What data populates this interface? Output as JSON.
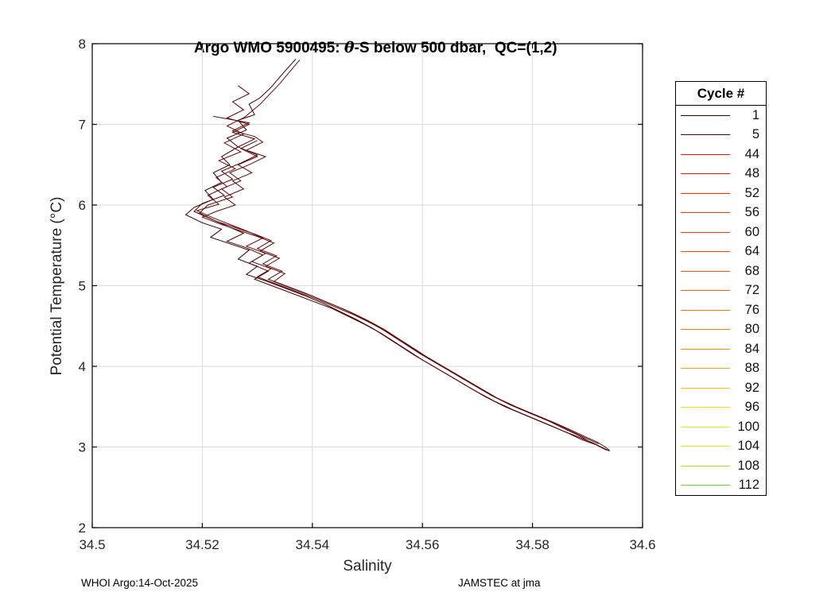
{
  "figure": {
    "title_prefix": "Argo WMO 5900495: ",
    "title_theta": "θ",
    "title_suffix": "-S below 500 dbar,  QC=(1,2)",
    "footer_left": "WHOI Argo:14-Oct-2025",
    "footer_right": "JAMSTEC at jma"
  },
  "legend": {
    "title": "Cycle #",
    "entries": [
      {
        "label": "1",
        "color": "#2e0000"
      },
      {
        "label": "5",
        "color": "#520003"
      },
      {
        "label": "44",
        "color": "#fb0f00"
      },
      {
        "label": "48",
        "color": "#f51d00"
      },
      {
        "label": "52",
        "color": "#ff2a00"
      },
      {
        "label": "56",
        "color": "#f63600"
      },
      {
        "label": "60",
        "color": "#ea4200"
      },
      {
        "label": "64",
        "color": "#f84e00"
      },
      {
        "label": "68",
        "color": "#f65a00"
      },
      {
        "label": "72",
        "color": "#f56600"
      },
      {
        "label": "76",
        "color": "#f77200"
      },
      {
        "label": "80",
        "color": "#f87e00"
      },
      {
        "label": "84",
        "color": "#f98b00"
      },
      {
        "label": "88",
        "color": "#fca500"
      },
      {
        "label": "92",
        "color": "#fdc100"
      },
      {
        "label": "96",
        "color": "#fedd00"
      },
      {
        "label": "100",
        "color": "#f8ef00"
      },
      {
        "label": "104",
        "color": "#d9ee00"
      },
      {
        "label": "108",
        "color": "#b3e400"
      },
      {
        "label": "112",
        "color": "#7ed321"
      }
    ]
  },
  "chart_data": {
    "type": "line",
    "title": "Argo WMO 5900495: θ-S below 500 dbar,  QC=(1,2)",
    "xlabel": "Salinity",
    "ylabel": "Potential Temperature (°C)",
    "xlim": [
      34.5,
      34.6
    ],
    "ylim": [
      2,
      8
    ],
    "grid": true,
    "legend_title": "Cycle #",
    "legend_position": "right-outside",
    "x_ticks": {
      "values": [
        34.5,
        34.52,
        34.54,
        34.56,
        34.58,
        34.6
      ],
      "labels": [
        "34.5",
        "34.52",
        "34.54",
        "34.56",
        "34.58",
        "34.6"
      ]
    },
    "y_ticks": {
      "values": [
        2,
        3,
        4,
        5,
        6,
        7,
        8
      ],
      "labels": [
        "2",
        "3",
        "4",
        "5",
        "6",
        "7",
        "8"
      ]
    },
    "series": [
      {
        "name": "trace-1",
        "color": "#2e0000",
        "points": [
          [
            34.537,
            7.81
          ],
          [
            34.5345,
            7.62
          ],
          [
            34.5325,
            7.46
          ],
          [
            34.5305,
            7.33
          ],
          [
            34.5285,
            7.25
          ],
          [
            34.5295,
            7.12
          ],
          [
            34.5265,
            7.05
          ],
          [
            34.528,
            6.93
          ],
          [
            34.5245,
            6.83
          ],
          [
            34.5265,
            6.72
          ],
          [
            34.5235,
            6.6
          ],
          [
            34.525,
            6.5
          ],
          [
            34.522,
            6.4
          ],
          [
            34.5235,
            6.28
          ],
          [
            34.5205,
            6.18
          ],
          [
            34.522,
            6.07
          ],
          [
            34.5185,
            5.97
          ],
          [
            34.517,
            5.88
          ],
          [
            34.52,
            5.78
          ],
          [
            34.5235,
            5.7
          ],
          [
            34.5215,
            5.6
          ],
          [
            34.525,
            5.52
          ],
          [
            34.5285,
            5.44
          ],
          [
            34.5265,
            5.33
          ],
          [
            34.53,
            5.24
          ],
          [
            34.528,
            5.14
          ],
          [
            34.5315,
            5.06
          ],
          [
            34.535,
            4.97
          ],
          [
            34.5385,
            4.88
          ],
          [
            34.542,
            4.78
          ],
          [
            34.545,
            4.68
          ],
          [
            34.548,
            4.58
          ],
          [
            34.551,
            4.47
          ],
          [
            34.5535,
            4.36
          ],
          [
            34.556,
            4.25
          ],
          [
            34.5585,
            4.14
          ],
          [
            34.5615,
            4.02
          ],
          [
            34.5645,
            3.9
          ],
          [
            34.568,
            3.76
          ],
          [
            34.5715,
            3.62
          ],
          [
            34.575,
            3.5
          ],
          [
            34.5785,
            3.4
          ],
          [
            34.582,
            3.3
          ],
          [
            34.5855,
            3.2
          ],
          [
            34.5885,
            3.12
          ],
          [
            34.591,
            3.05
          ],
          [
            34.594,
            2.95
          ]
        ]
      },
      {
        "name": "trace-2",
        "color": "#520003",
        "points": [
          [
            34.5265,
            7.48
          ],
          [
            34.5285,
            7.38
          ],
          [
            34.5255,
            7.28
          ],
          [
            34.5275,
            7.18
          ],
          [
            34.5245,
            7.08
          ],
          [
            34.5285,
            7.0
          ],
          [
            34.5255,
            6.9
          ],
          [
            34.5295,
            6.82
          ],
          [
            34.5265,
            6.72
          ],
          [
            34.53,
            6.62
          ],
          [
            34.527,
            6.52
          ],
          [
            34.5235,
            6.42
          ],
          [
            34.5255,
            6.32
          ],
          [
            34.522,
            6.22
          ],
          [
            34.524,
            6.12
          ],
          [
            34.52,
            6.02
          ],
          [
            34.5185,
            5.92
          ],
          [
            34.5215,
            5.83
          ],
          [
            34.5245,
            5.74
          ],
          [
            34.5275,
            5.65
          ],
          [
            34.5245,
            5.55
          ],
          [
            34.528,
            5.47
          ],
          [
            34.531,
            5.38
          ],
          [
            34.5285,
            5.28
          ],
          [
            34.532,
            5.18
          ],
          [
            34.5295,
            5.08
          ],
          [
            34.533,
            4.99
          ],
          [
            34.5365,
            4.9
          ],
          [
            34.54,
            4.81
          ],
          [
            34.5435,
            4.72
          ],
          [
            34.5465,
            4.62
          ],
          [
            34.5495,
            4.52
          ],
          [
            34.5525,
            4.41
          ],
          [
            34.555,
            4.3
          ],
          [
            34.5575,
            4.19
          ],
          [
            34.56,
            4.08
          ],
          [
            34.563,
            3.96
          ],
          [
            34.566,
            3.84
          ],
          [
            34.5695,
            3.7
          ],
          [
            34.573,
            3.57
          ],
          [
            34.5765,
            3.46
          ],
          [
            34.58,
            3.36
          ],
          [
            34.5835,
            3.26
          ],
          [
            34.5865,
            3.17
          ],
          [
            34.589,
            3.09
          ],
          [
            34.5915,
            3.03
          ],
          [
            34.5935,
            2.96
          ]
        ]
      },
      {
        "name": "trace-3",
        "color": "#5c0d0d",
        "points": [
          [
            34.522,
            7.1
          ],
          [
            34.5285,
            7.02
          ],
          [
            34.5255,
            6.92
          ],
          [
            34.5295,
            6.85
          ],
          [
            34.531,
            6.78
          ],
          [
            34.528,
            6.68
          ],
          [
            34.5315,
            6.6
          ],
          [
            34.5285,
            6.5
          ],
          [
            34.525,
            6.4
          ],
          [
            34.527,
            6.3
          ],
          [
            34.5235,
            6.2
          ],
          [
            34.5255,
            6.1
          ],
          [
            34.521,
            6.0
          ],
          [
            34.5195,
            5.9
          ],
          [
            34.5225,
            5.8
          ],
          [
            34.526,
            5.72
          ],
          [
            34.5295,
            5.64
          ],
          [
            34.5325,
            5.56
          ],
          [
            34.53,
            5.46
          ],
          [
            34.5335,
            5.37
          ],
          [
            34.531,
            5.27
          ],
          [
            34.5345,
            5.18
          ],
          [
            34.532,
            5.08
          ],
          [
            34.5355,
            4.99
          ],
          [
            34.539,
            4.9
          ],
          [
            34.5425,
            4.8
          ],
          [
            34.546,
            4.7
          ],
          [
            34.549,
            4.6
          ],
          [
            34.552,
            4.49
          ],
          [
            34.5545,
            4.38
          ],
          [
            34.557,
            4.27
          ],
          [
            34.5595,
            4.16
          ],
          [
            34.5625,
            4.04
          ],
          [
            34.5655,
            3.92
          ],
          [
            34.569,
            3.78
          ],
          [
            34.5725,
            3.64
          ],
          [
            34.576,
            3.52
          ],
          [
            34.5795,
            3.42
          ],
          [
            34.583,
            3.32
          ],
          [
            34.586,
            3.22
          ],
          [
            34.5885,
            3.14
          ],
          [
            34.59,
            3.08
          ]
        ]
      },
      {
        "name": "trace-4",
        "color": "#63100f",
        "points": [
          [
            34.5377,
            7.8
          ],
          [
            34.534,
            7.5
          ],
          [
            34.5305,
            7.25
          ],
          [
            34.5277,
            7.09
          ],
          [
            34.5245,
            6.98
          ],
          [
            34.5275,
            6.88
          ],
          [
            34.524,
            6.77
          ],
          [
            34.527,
            6.66
          ],
          [
            34.523,
            6.55
          ],
          [
            34.526,
            6.45
          ],
          [
            34.5225,
            6.34
          ],
          [
            34.5245,
            6.23
          ],
          [
            34.521,
            6.12
          ],
          [
            34.523,
            6.01
          ],
          [
            34.519,
            5.93
          ],
          [
            34.522,
            5.84
          ],
          [
            34.525,
            5.76
          ],
          [
            34.528,
            5.68
          ],
          [
            34.531,
            5.59
          ],
          [
            34.528,
            5.49
          ],
          [
            34.5315,
            5.4
          ],
          [
            34.529,
            5.3
          ],
          [
            34.5325,
            5.21
          ],
          [
            34.53,
            5.11
          ],
          [
            34.5335,
            5.02
          ],
          [
            34.537,
            4.93
          ],
          [
            34.5405,
            4.84
          ],
          [
            34.544,
            4.74
          ],
          [
            34.5475,
            4.64
          ],
          [
            34.5505,
            4.54
          ],
          [
            34.5535,
            4.43
          ],
          [
            34.556,
            4.32
          ],
          [
            34.5585,
            4.21
          ],
          [
            34.561,
            4.1
          ],
          [
            34.564,
            3.98
          ],
          [
            34.567,
            3.86
          ],
          [
            34.5705,
            3.72
          ],
          [
            34.574,
            3.59
          ],
          [
            34.5775,
            3.48
          ],
          [
            34.581,
            3.38
          ],
          [
            34.5845,
            3.28
          ],
          [
            34.5875,
            3.18
          ],
          [
            34.59,
            3.1
          ],
          [
            34.592,
            3.04
          ]
        ]
      },
      {
        "name": "trace-5",
        "color": "#550a0a",
        "points": [
          [
            34.53,
            6.8
          ],
          [
            34.527,
            6.7
          ],
          [
            34.53,
            6.6
          ],
          [
            34.5265,
            6.5
          ],
          [
            34.529,
            6.4
          ],
          [
            34.5255,
            6.3
          ],
          [
            34.5275,
            6.2
          ],
          [
            34.524,
            6.1
          ],
          [
            34.526,
            6.0
          ],
          [
            34.5225,
            5.92
          ],
          [
            34.52,
            5.85
          ],
          [
            34.523,
            5.77
          ],
          [
            34.5265,
            5.69
          ],
          [
            34.53,
            5.61
          ],
          [
            34.533,
            5.53
          ],
          [
            34.5305,
            5.43
          ],
          [
            34.534,
            5.34
          ],
          [
            34.5315,
            5.24
          ],
          [
            34.535,
            5.15
          ],
          [
            34.533,
            5.05
          ],
          [
            34.5365,
            4.96
          ],
          [
            34.54,
            4.87
          ],
          [
            34.5435,
            4.77
          ],
          [
            34.547,
            4.67
          ],
          [
            34.55,
            4.57
          ],
          [
            34.553,
            4.46
          ],
          [
            34.5555,
            4.35
          ],
          [
            34.558,
            4.24
          ],
          [
            34.5605,
            4.13
          ],
          [
            34.5635,
            4.01
          ],
          [
            34.5665,
            3.89
          ],
          [
            34.57,
            3.75
          ],
          [
            34.5735,
            3.61
          ],
          [
            34.577,
            3.5
          ],
          [
            34.5805,
            3.4
          ],
          [
            34.584,
            3.3
          ],
          [
            34.587,
            3.21
          ],
          [
            34.5895,
            3.13
          ],
          [
            34.5915,
            3.07
          ],
          [
            34.593,
            3.01
          ],
          [
            34.594,
            2.96
          ]
        ]
      }
    ]
  }
}
